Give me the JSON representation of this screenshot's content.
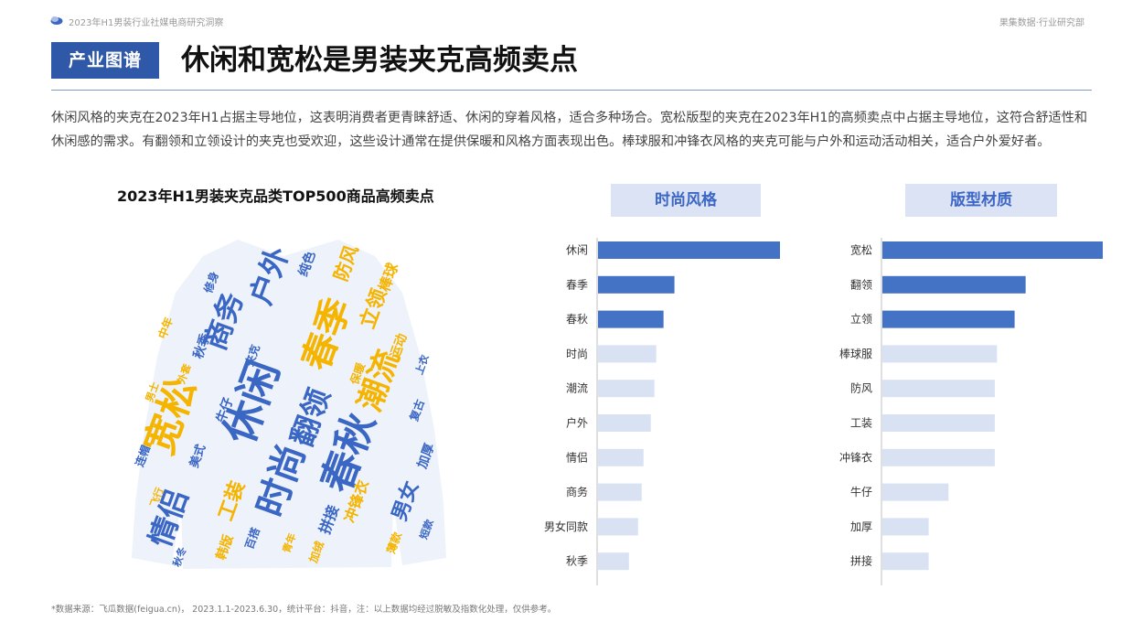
{
  "header": {
    "report_title": "2023年H1男装行业社媒电商研究洞察",
    "brand": "果集数据·行业研究部"
  },
  "section": {
    "tag": "产业图谱",
    "title": "休闲和宽松是男装夹克高频卖点"
  },
  "description": "休闲风格的夹克在2023年H1占据主导地位，这表明消费者更青睐舒适、休闲的穿着风格，适合多种场合。宽松版型的夹克在2023年H1的高频卖点中占据主导地位，这符合舒适性和休闲感的需求。有翻领和立领设计的夹克也受欢迎，这些设计通常在提供保暖和风格方面表现出色。棒球服和冲锋衣风格的夹克可能与户外和运动活动相关，适合户外爱好者。",
  "wordcloud": {
    "title": "2023年H1男装夹克品类TOP500商品高频卖点",
    "colors": {
      "blue": "#3a66c4",
      "yellow": "#f4b400",
      "dark": "#2d4e9a"
    },
    "words": [
      {
        "text": "休闲",
        "color": "blue"
      },
      {
        "text": "宽松",
        "color": "yellow"
      },
      {
        "text": "春秋",
        "color": "blue"
      },
      {
        "text": "时尚",
        "color": "blue"
      },
      {
        "text": "春季",
        "color": "yellow"
      },
      {
        "text": "商务",
        "color": "blue"
      },
      {
        "text": "翻领",
        "color": "blue"
      },
      {
        "text": "潮流",
        "color": "yellow"
      },
      {
        "text": "户外",
        "color": "blue"
      },
      {
        "text": "情侣",
        "color": "blue"
      },
      {
        "text": "男女",
        "color": "blue"
      },
      {
        "text": "立领",
        "color": "yellow"
      },
      {
        "text": "工装",
        "color": "yellow"
      },
      {
        "text": "防风",
        "color": "yellow"
      },
      {
        "text": "棒球",
        "color": "yellow"
      },
      {
        "text": "拼接",
        "color": "blue"
      },
      {
        "text": "加厚",
        "color": "blue"
      },
      {
        "text": "冲锋衣",
        "color": "yellow"
      },
      {
        "text": "牛仔",
        "color": "blue"
      },
      {
        "text": "纯色",
        "color": "blue"
      },
      {
        "text": "秋季",
        "color": "blue"
      },
      {
        "text": "韩版",
        "color": "yellow"
      },
      {
        "text": "运动",
        "color": "yellow"
      },
      {
        "text": "美式",
        "color": "blue"
      },
      {
        "text": "复古",
        "color": "blue"
      },
      {
        "text": "保暖",
        "color": "yellow"
      },
      {
        "text": "百搭",
        "color": "blue"
      },
      {
        "text": "薄款",
        "color": "yellow"
      },
      {
        "text": "修身",
        "color": "blue"
      },
      {
        "text": "中年",
        "color": "yellow"
      },
      {
        "text": "连帽",
        "color": "blue"
      },
      {
        "text": "加绒",
        "color": "yellow"
      },
      {
        "text": "夹克",
        "color": "blue"
      },
      {
        "text": "外套",
        "color": "yellow"
      },
      {
        "text": "上衣",
        "color": "blue"
      },
      {
        "text": "男士",
        "color": "yellow"
      },
      {
        "text": "秋冬",
        "color": "blue"
      },
      {
        "text": "青年",
        "color": "yellow"
      },
      {
        "text": "短款",
        "color": "blue"
      },
      {
        "text": "飞行",
        "color": "yellow"
      }
    ]
  },
  "chart_data": [
    {
      "type": "bar",
      "title": "时尚风格",
      "orientation": "horizontal",
      "categories": [
        "休闲",
        "春季",
        "春秋",
        "时尚",
        "潮流",
        "户外",
        "情侣",
        "商务",
        "男女同款",
        "秋季"
      ],
      "values": [
        100,
        42,
        36,
        32,
        31,
        29,
        25,
        24,
        22,
        17
      ],
      "highlight_count": 3,
      "colors": {
        "highlight": "#4472c4",
        "normal": "#d9e2f3"
      }
    },
    {
      "type": "bar",
      "title": "版型材质",
      "orientation": "horizontal",
      "categories": [
        "宽松",
        "翻领",
        "立领",
        "棒球服",
        "防风",
        "工装",
        "冲锋衣",
        "牛仔",
        "加厚",
        "拼接"
      ],
      "values": [
        100,
        65,
        60,
        52,
        51,
        51,
        51,
        30,
        21,
        21
      ],
      "highlight_count": 3,
      "colors": {
        "highlight": "#4472c4",
        "normal": "#d9e2f3"
      }
    }
  ],
  "footer": {
    "note": "*数据来源：飞瓜数据(feigua.cn)， 2023.1.1-2023.6.30，统计平台：抖音，注：以上数据均经过脱敏及指数化处理，仅供参考。"
  }
}
